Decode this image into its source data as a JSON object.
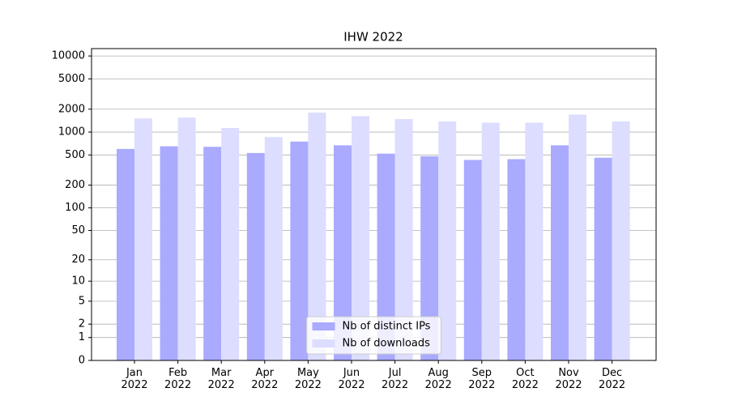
{
  "chart_data": {
    "type": "bar",
    "title": "IHW 2022",
    "categories": [
      "Jan\n2022",
      "Feb\n2022",
      "Mar\n2022",
      "Apr\n2022",
      "May\n2022",
      "Jun\n2022",
      "Jul\n2022",
      "Aug\n2022",
      "Sep\n2022",
      "Oct\n2022",
      "Nov\n2022",
      "Dec\n2022"
    ],
    "series": [
      {
        "name": "Nb of distinct IPs",
        "color": "#aaaaff",
        "values": [
          600,
          650,
          640,
          530,
          750,
          670,
          520,
          480,
          430,
          440,
          670,
          460
        ]
      },
      {
        "name": "Nb of downloads",
        "color": "#ddddff",
        "values": [
          1510,
          1550,
          1130,
          860,
          1800,
          1620,
          1480,
          1380,
          1330,
          1330,
          1700,
          1380
        ]
      }
    ],
    "yscale": "log1p",
    "ylim": [
      0,
      12500
    ],
    "yticks": [
      0,
      1,
      2,
      5,
      10,
      20,
      50,
      100,
      200,
      500,
      1000,
      2000,
      5000,
      10000
    ],
    "grid": true,
    "legend": "lower center"
  }
}
